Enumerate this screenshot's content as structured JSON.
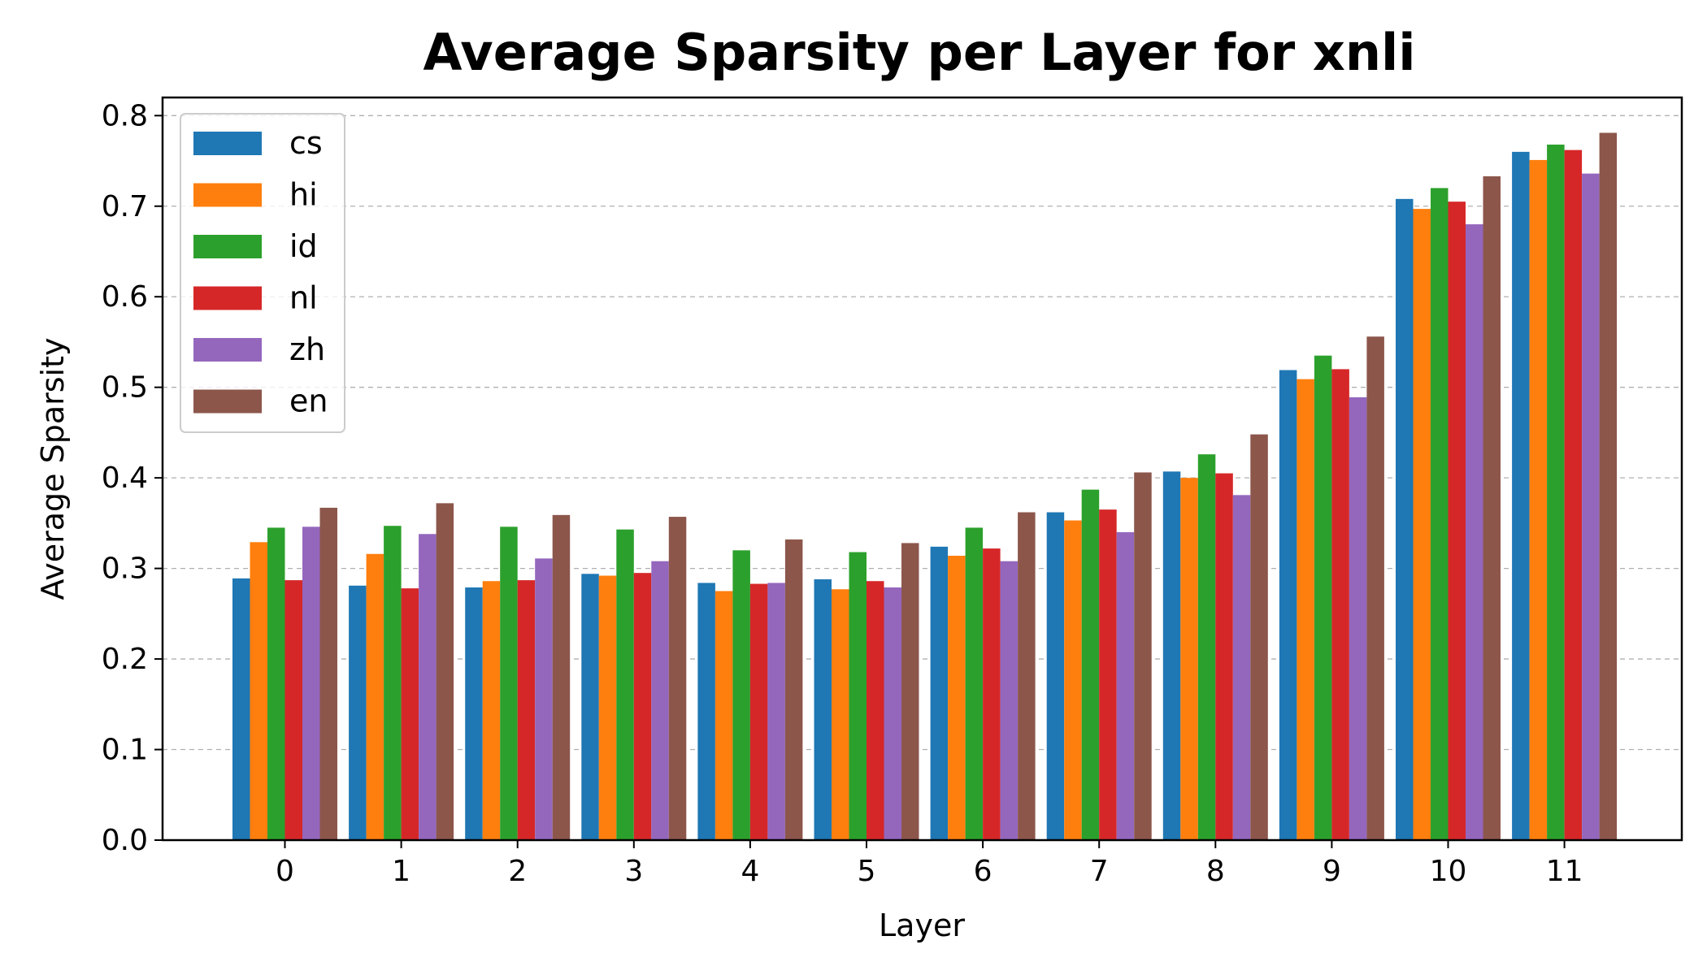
{
  "chart_data": {
    "type": "bar",
    "title": "Average Sparsity per Layer for xnli",
    "xlabel": "Layer",
    "ylabel": "Average Sparsity",
    "categories": [
      "0",
      "1",
      "2",
      "3",
      "4",
      "5",
      "6",
      "7",
      "8",
      "9",
      "10",
      "11"
    ],
    "ylim": [
      0,
      0.82
    ],
    "yticks": [
      0.0,
      0.1,
      0.2,
      0.3,
      0.4,
      0.5,
      0.6,
      0.7,
      0.8
    ],
    "ytick_labels": [
      "0.0",
      "0.1",
      "0.2",
      "0.3",
      "0.4",
      "0.5",
      "0.6",
      "0.7",
      "0.8"
    ],
    "grid": "y, dashed",
    "legend_position": "top-left",
    "series": [
      {
        "name": "cs",
        "color": "#1f77b4",
        "values": [
          0.289,
          0.281,
          0.279,
          0.294,
          0.284,
          0.288,
          0.324,
          0.362,
          0.407,
          0.519,
          0.708,
          0.76
        ]
      },
      {
        "name": "hi",
        "color": "#ff7f0e",
        "values": [
          0.329,
          0.316,
          0.286,
          0.292,
          0.275,
          0.277,
          0.314,
          0.353,
          0.4,
          0.509,
          0.697,
          0.751
        ]
      },
      {
        "name": "id",
        "color": "#2ca02c",
        "values": [
          0.345,
          0.347,
          0.346,
          0.343,
          0.32,
          0.318,
          0.345,
          0.387,
          0.426,
          0.535,
          0.72,
          0.768
        ]
      },
      {
        "name": "nl",
        "color": "#d62728",
        "values": [
          0.287,
          0.278,
          0.287,
          0.295,
          0.283,
          0.286,
          0.322,
          0.365,
          0.405,
          0.52,
          0.705,
          0.762
        ]
      },
      {
        "name": "zh",
        "color": "#9467bd",
        "values": [
          0.346,
          0.338,
          0.311,
          0.308,
          0.284,
          0.279,
          0.308,
          0.34,
          0.381,
          0.489,
          0.68,
          0.736
        ]
      },
      {
        "name": "en",
        "color": "#8c564b",
        "values": [
          0.367,
          0.372,
          0.359,
          0.357,
          0.332,
          0.328,
          0.362,
          0.406,
          0.448,
          0.556,
          0.733,
          0.781
        ]
      }
    ]
  }
}
